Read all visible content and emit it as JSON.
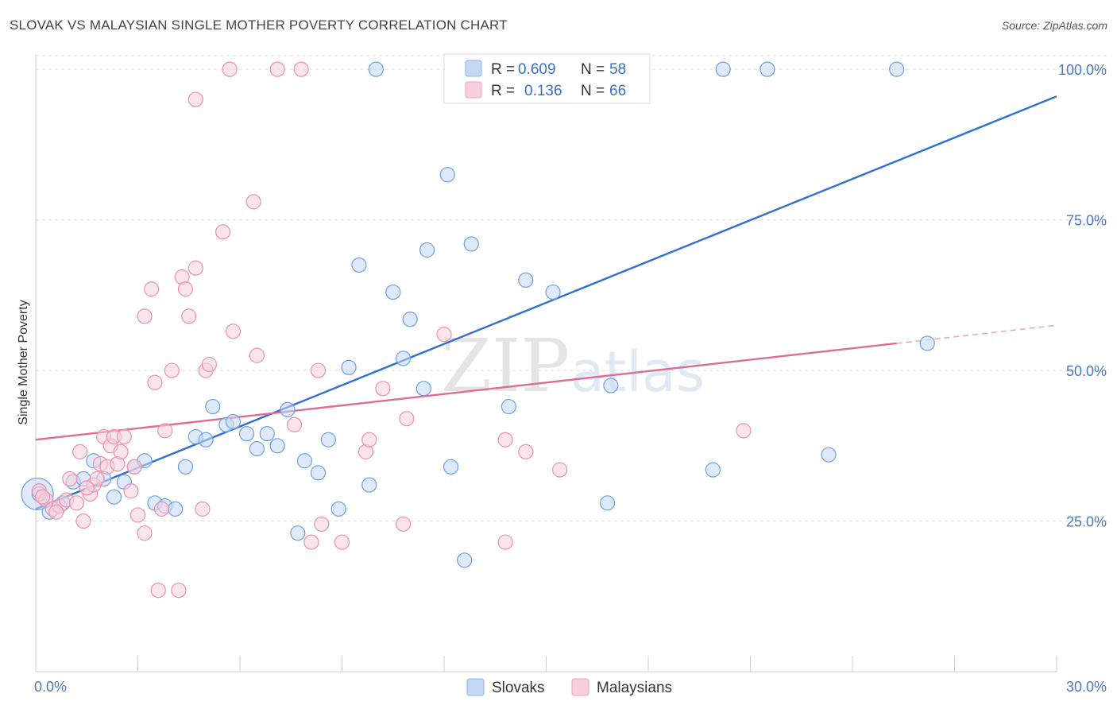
{
  "title": "SLOVAK VS MALAYSIAN SINGLE MOTHER POVERTY CORRELATION CHART",
  "source": "Source: ZipAtlas.com",
  "watermark": {
    "zip": "ZIP",
    "atlas": "atlas"
  },
  "legend": {
    "r_label": "R =",
    "n_label": "N =",
    "rows": [
      {
        "r": "0.609",
        "n": "58",
        "color": "#aec9ef"
      },
      {
        "r": "0.136",
        "n": "66",
        "color": "#f6b8cb"
      }
    ]
  },
  "bottom_legend": [
    "Slovaks",
    "Malaysians"
  ],
  "chart_data": {
    "type": "scatter",
    "title": "SLOVAK VS MALAYSIAN SINGLE MOTHER POVERTY CORRELATION CHART",
    "xlabel": "",
    "ylabel": "Single Mother Poverty",
    "xlim": [
      0,
      30
    ],
    "ylim": [
      0,
      102
    ],
    "x_tick_labels": [
      "0.0%",
      "30.0%"
    ],
    "y_ticks": [
      25,
      50,
      75,
      100
    ],
    "y_tick_labels": [
      "25.0%",
      "50.0%",
      "75.0%",
      "100.0%"
    ],
    "grid": "horizontal dashed",
    "legend_position": "top-center",
    "series": [
      {
        "name": "Slovaks",
        "color": "#6f9fe0",
        "fill": "#c3d8f5",
        "trend": {
          "x0": 0,
          "y0": 27.0,
          "x1": 30,
          "y1": 95.5
        },
        "points": [
          [
            0.1,
            29.5
          ],
          [
            0.4,
            26.5
          ],
          [
            0.8,
            28.0
          ],
          [
            1.1,
            31.5
          ],
          [
            1.4,
            32.0
          ],
          [
            1.7,
            35.0
          ],
          [
            2.0,
            32.0
          ],
          [
            2.3,
            29.0
          ],
          [
            2.6,
            31.5
          ],
          [
            2.9,
            34.0
          ],
          [
            3.2,
            35.0
          ],
          [
            3.5,
            28.0
          ],
          [
            3.8,
            27.5
          ],
          [
            4.1,
            27.0
          ],
          [
            4.4,
            34.0
          ],
          [
            4.7,
            39.0
          ],
          [
            5.0,
            38.5
          ],
          [
            5.2,
            44.0
          ],
          [
            5.6,
            41.0
          ],
          [
            5.8,
            41.5
          ],
          [
            6.2,
            39.5
          ],
          [
            6.5,
            37.0
          ],
          [
            6.8,
            39.5
          ],
          [
            7.1,
            37.5
          ],
          [
            7.4,
            43.5
          ],
          [
            7.7,
            23.0
          ],
          [
            7.9,
            35.0
          ],
          [
            8.3,
            33.0
          ],
          [
            8.6,
            38.5
          ],
          [
            8.9,
            27.0
          ],
          [
            9.2,
            50.5
          ],
          [
            9.5,
            67.5
          ],
          [
            9.8,
            31.0
          ],
          [
            10.0,
            100.0
          ],
          [
            10.5,
            63.0
          ],
          [
            10.8,
            52.0
          ],
          [
            11.0,
            58.5
          ],
          [
            11.5,
            70.0
          ],
          [
            11.4,
            47.0
          ],
          [
            12.1,
            82.5
          ],
          [
            12.2,
            34.0
          ],
          [
            12.6,
            18.5
          ],
          [
            12.8,
            71.0
          ],
          [
            13.5,
            100.0
          ],
          [
            13.9,
            44.0
          ],
          [
            14.4,
            65.0
          ],
          [
            15.2,
            63.0
          ],
          [
            16.0,
            100.0
          ],
          [
            16.0,
            100.0
          ],
          [
            16.8,
            28.0
          ],
          [
            16.9,
            47.5
          ],
          [
            17.0,
            100.0
          ],
          [
            19.9,
            33.5
          ],
          [
            20.2,
            100.0
          ],
          [
            21.5,
            100.0
          ],
          [
            23.3,
            36.0
          ],
          [
            25.3,
            100.0
          ],
          [
            26.2,
            54.5
          ]
        ]
      },
      {
        "name": "Malaysians",
        "color": "#eb8fae",
        "fill": "#f8cfdc",
        "trend": {
          "x0": 0,
          "y0": 38.5,
          "x1": 25.3,
          "y1": 54.5
        },
        "trend_dashed": {
          "x0": 25.3,
          "y0": 54.5,
          "x1": 30,
          "y1": 57.5
        },
        "points": [
          [
            0.1,
            30.0
          ],
          [
            0.3,
            28.5
          ],
          [
            0.5,
            27.0
          ],
          [
            0.7,
            27.5
          ],
          [
            0.9,
            28.5
          ],
          [
            1.0,
            32.0
          ],
          [
            1.2,
            28.0
          ],
          [
            1.3,
            36.5
          ],
          [
            1.4,
            25.0
          ],
          [
            1.6,
            29.5
          ],
          [
            1.7,
            31.0
          ],
          [
            1.8,
            32.0
          ],
          [
            1.9,
            34.5
          ],
          [
            2.0,
            39.0
          ],
          [
            2.1,
            34.0
          ],
          [
            2.2,
            37.5
          ],
          [
            2.3,
            39.0
          ],
          [
            2.4,
            34.5
          ],
          [
            2.5,
            36.5
          ],
          [
            2.6,
            39.0
          ],
          [
            2.8,
            30.0
          ],
          [
            2.9,
            34.0
          ],
          [
            3.0,
            26.0
          ],
          [
            3.2,
            23.0
          ],
          [
            3.2,
            59.0
          ],
          [
            3.4,
            63.5
          ],
          [
            3.5,
            48.0
          ],
          [
            3.6,
            13.5
          ],
          [
            3.7,
            27.0
          ],
          [
            3.8,
            40.0
          ],
          [
            4.0,
            50.0
          ],
          [
            4.2,
            13.5
          ],
          [
            4.3,
            65.5
          ],
          [
            4.4,
            63.5
          ],
          [
            4.5,
            59.0
          ],
          [
            4.7,
            67.0
          ],
          [
            4.7,
            95.0
          ],
          [
            4.9,
            27.0
          ],
          [
            5.0,
            50.0
          ],
          [
            5.1,
            51.0
          ],
          [
            5.5,
            73.0
          ],
          [
            5.7,
            100.0
          ],
          [
            5.8,
            56.5
          ],
          [
            6.4,
            78.0
          ],
          [
            6.5,
            52.5
          ],
          [
            7.1,
            100.0
          ],
          [
            7.6,
            41.0
          ],
          [
            7.8,
            100.0
          ],
          [
            8.1,
            21.5
          ],
          [
            8.3,
            50.0
          ],
          [
            8.4,
            24.5
          ],
          [
            9.0,
            21.5
          ],
          [
            9.7,
            36.5
          ],
          [
            9.8,
            38.5
          ],
          [
            10.2,
            47.0
          ],
          [
            10.8,
            24.5
          ],
          [
            10.9,
            42.0
          ],
          [
            12.0,
            56.0
          ],
          [
            13.8,
            38.5
          ],
          [
            13.8,
            21.5
          ],
          [
            14.4,
            36.5
          ],
          [
            15.4,
            33.5
          ],
          [
            20.8,
            40.0
          ],
          [
            0.2,
            29.0
          ],
          [
            0.6,
            26.5
          ],
          [
            1.5,
            30.5
          ]
        ]
      }
    ]
  }
}
